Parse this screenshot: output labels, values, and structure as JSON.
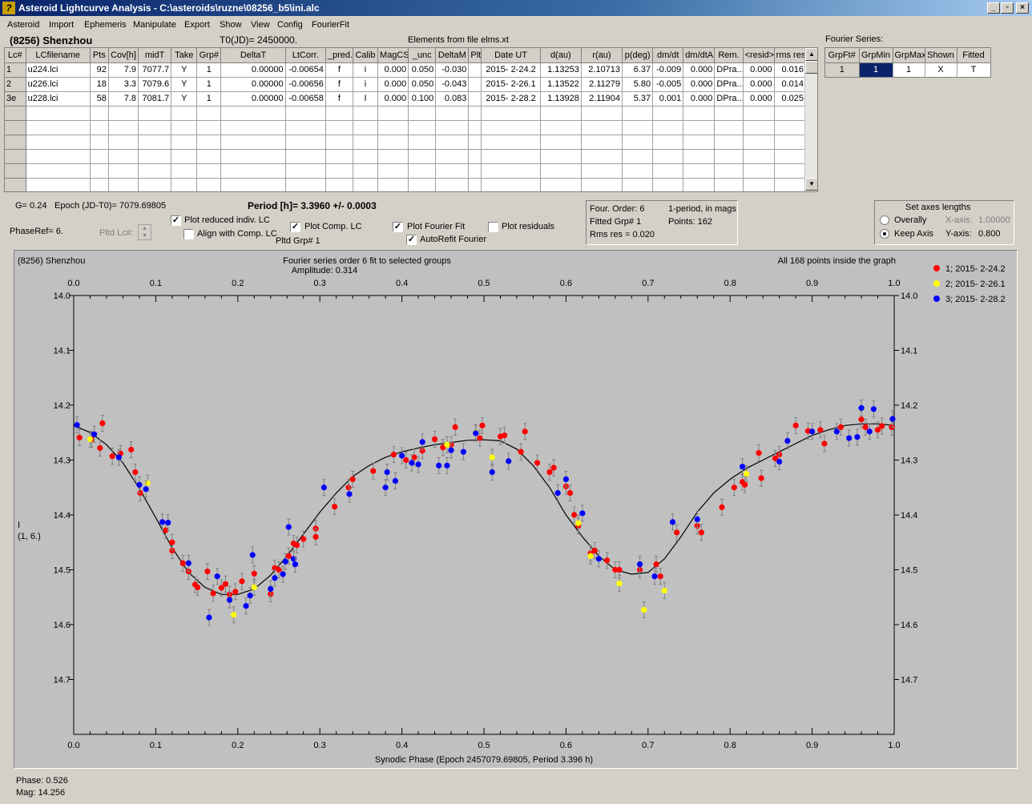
{
  "window": {
    "title": "Asteroid Lightcurve Analysis - C:\\asteroids\\ruzne\\08256_b5\\ini.alc",
    "buttons": [
      "_",
      "▫",
      "×"
    ]
  },
  "menu": [
    "Asteroid",
    "Import",
    "Ephemeris",
    "Manipulate",
    "Export",
    "Show",
    "View",
    "Config",
    "FourierFit"
  ],
  "header": {
    "object": "(8256) Shenzhou",
    "t0": "T0(JD)= 2450000.",
    "elements": "Elements from file elms.xt",
    "fourier_label": "Fourier Series:"
  },
  "lc_table": {
    "columns": [
      "Lc#",
      "LCfilename",
      "Pts",
      "Cov[h]",
      "midT",
      "Take",
      "Grp#",
      "DeltaT",
      "LtCorr.",
      "_pred.",
      "Calib",
      "MagCS",
      "_unc",
      "DeltaM",
      "Plt",
      "Date UT",
      "d(au)",
      "r(au)",
      "p(deg)",
      "dm/dt",
      "dm/dtA",
      "Rem.",
      "<resid>",
      "rms res"
    ],
    "rows": [
      [
        "1",
        "u224.lci",
        "92",
        "7.9",
        "7077.7",
        "Y",
        "1",
        "0.00000",
        "-0.00654",
        "f",
        "i",
        "0.000",
        "0.050",
        "-0.030",
        "",
        "2015- 2-24.2",
        "1.13253",
        "2.10713",
        "6.37",
        "-0.009",
        "0.000",
        "DPra...",
        "0.000",
        "0.016"
      ],
      [
        "2",
        "u226.lci",
        "18",
        "3.3",
        "7079.6",
        "Y",
        "1",
        "0.00000",
        "-0.00656",
        "f",
        "i",
        "0.000",
        "0.050",
        "-0.043",
        "",
        "2015- 2-26.1",
        "1.13522",
        "2.11279",
        "5.80",
        "-0.005",
        "0.000",
        "DPra...",
        "0.000",
        "0.014"
      ],
      [
        "3e",
        "u228.lci",
        "58",
        "7.8",
        "7081.7",
        "Y",
        "1",
        "0.00000",
        "-0.00658",
        "f",
        "I",
        "0.000",
        "0.100",
        "0.083",
        "",
        "2015- 2-28.2",
        "1.13928",
        "2.11904",
        "5.37",
        "0.001",
        "0.000",
        "DPra...",
        "0.000",
        "0.025"
      ]
    ]
  },
  "fourier_table": {
    "columns": [
      "GrpFt#",
      "GrpMin",
      "GrpMax",
      "Shown",
      "Fitted"
    ],
    "rows": [
      [
        "1",
        "1",
        "1",
        "X",
        "T"
      ]
    ]
  },
  "controls": {
    "g_text": "G= 0.24",
    "epoch_text": "Epoch (JD-T0)= 7079.69805",
    "period_text": "Period [h]= 3.3960 +/- 0.0003",
    "phaseref_text": "PhaseRef= 6.",
    "pltd_lc_label": "Pltd Lc#:",
    "plot_reduced_label": "Plot reduced indiv. LC",
    "align_label": "Align with Comp. LC",
    "plot_comp_label": "Plot Comp. LC",
    "pltd_grp_text": "Pltd Grp#  1",
    "plot_fourier_label": "Plot Fourier Fit",
    "autorefit_label": "AutoRefit Fourier",
    "plot_residuals_label": "Plot residuals",
    "checks": {
      "plot_reduced": true,
      "align": false,
      "plot_comp": true,
      "plot_fourier": true,
      "autorefit": true,
      "plot_residuals": false
    }
  },
  "fit_info": {
    "order": "Four. Order:  6",
    "mode": "1-period, in mags",
    "fitted": "Fitted Grp# 1",
    "points": "Points: 162",
    "rms": "Rms res     = 0.020"
  },
  "axes_box": {
    "title": "Set axes lengths",
    "overall": "Overally",
    "keep": "Keep Axis",
    "x_label": "X-axis:",
    "x_value": "1.00000",
    "y_label": "Y-axis:",
    "y_value": "0.800",
    "selected": "keep"
  },
  "chart_data": {
    "type": "scatter",
    "object_label": "(8256) Shenzhou",
    "title": "Fourier series order 6 fit to selected groups",
    "subtitle": "Amplitude: 0.314",
    "note": "All 168 points inside the graph",
    "xlabel": "Synodic Phase (Epoch 2457079.69805, Period 3.396 h)",
    "ylabel": "I",
    "ylabel2": "(1, 6.)",
    "xlim": [
      0.0,
      1.0
    ],
    "ylim": [
      14.0,
      14.8
    ],
    "y_inverted": true,
    "xticks": [
      "0.0",
      "0.1",
      "0.2",
      "0.3",
      "0.4",
      "0.5",
      "0.6",
      "0.7",
      "0.8",
      "0.9",
      "1.0"
    ],
    "yticks": [
      "14.0",
      "14.1",
      "14.2",
      "14.3",
      "14.4",
      "14.5",
      "14.6",
      "14.7"
    ],
    "series": [
      {
        "name": "1; 2015- 2-24.2",
        "color": "#ff0000",
        "points": [
          [
            0.007,
            14.259
          ],
          [
            0.022,
            14.262
          ],
          [
            0.032,
            14.278
          ],
          [
            0.035,
            14.233
          ],
          [
            0.047,
            14.293
          ],
          [
            0.057,
            14.288
          ],
          [
            0.07,
            14.281
          ],
          [
            0.075,
            14.322
          ],
          [
            0.081,
            14.36
          ],
          [
            0.112,
            14.428
          ],
          [
            0.12,
            14.465
          ],
          [
            0.12,
            14.45
          ],
          [
            0.133,
            14.488
          ],
          [
            0.14,
            14.503
          ],
          [
            0.148,
            14.527
          ],
          [
            0.151,
            14.532
          ],
          [
            0.163,
            14.503
          ],
          [
            0.17,
            14.543
          ],
          [
            0.18,
            14.533
          ],
          [
            0.185,
            14.526
          ],
          [
            0.19,
            14.545
          ],
          [
            0.197,
            14.54
          ],
          [
            0.205,
            14.521
          ],
          [
            0.22,
            14.507
          ],
          [
            0.24,
            14.544
          ],
          [
            0.245,
            14.497
          ],
          [
            0.25,
            14.5
          ],
          [
            0.262,
            14.475
          ],
          [
            0.268,
            14.452
          ],
          [
            0.272,
            14.455
          ],
          [
            0.28,
            14.444
          ],
          [
            0.295,
            14.425
          ],
          [
            0.295,
            14.44
          ],
          [
            0.318,
            14.385
          ],
          [
            0.335,
            14.35
          ],
          [
            0.34,
            14.335
          ],
          [
            0.365,
            14.32
          ],
          [
            0.39,
            14.29
          ],
          [
            0.405,
            14.3
          ],
          [
            0.415,
            14.295
          ],
          [
            0.425,
            14.283
          ],
          [
            0.44,
            14.262
          ],
          [
            0.45,
            14.277
          ],
          [
            0.46,
            14.272
          ],
          [
            0.465,
            14.24
          ],
          [
            0.495,
            14.26
          ],
          [
            0.498,
            14.237
          ],
          [
            0.52,
            14.257
          ],
          [
            0.525,
            14.255
          ],
          [
            0.545,
            14.285
          ],
          [
            0.55,
            14.248
          ],
          [
            0.565,
            14.305
          ],
          [
            0.58,
            14.322
          ],
          [
            0.585,
            14.314
          ],
          [
            0.6,
            14.348
          ],
          [
            0.605,
            14.36
          ],
          [
            0.61,
            14.4
          ],
          [
            0.615,
            14.42
          ],
          [
            0.63,
            14.47
          ],
          [
            0.635,
            14.465
          ],
          [
            0.65,
            14.483
          ],
          [
            0.66,
            14.5
          ],
          [
            0.665,
            14.5
          ],
          [
            0.69,
            14.5
          ],
          [
            0.71,
            14.49
          ],
          [
            0.715,
            14.512
          ],
          [
            0.735,
            14.432
          ],
          [
            0.76,
            14.42
          ],
          [
            0.765,
            14.432
          ],
          [
            0.79,
            14.386
          ],
          [
            0.805,
            14.35
          ],
          [
            0.815,
            14.34
          ],
          [
            0.818,
            14.345
          ],
          [
            0.835,
            14.287
          ],
          [
            0.838,
            14.333
          ],
          [
            0.855,
            14.297
          ],
          [
            0.86,
            14.29
          ],
          [
            0.88,
            14.237
          ],
          [
            0.895,
            14.247
          ],
          [
            0.91,
            14.245
          ],
          [
            0.915,
            14.27
          ],
          [
            0.935,
            14.24
          ],
          [
            0.96,
            14.226
          ],
          [
            0.965,
            14.24
          ],
          [
            0.98,
            14.245
          ],
          [
            0.985,
            14.238
          ],
          [
            0.997,
            14.24
          ]
        ]
      },
      {
        "name": "2; 2015- 2-26.1",
        "color": "#ffff00",
        "points": [
          [
            0.02,
            14.262
          ],
          [
            0.09,
            14.342
          ],
          [
            0.195,
            14.582
          ],
          [
            0.22,
            14.532
          ],
          [
            0.455,
            14.272
          ],
          [
            0.49,
            14.25
          ],
          [
            0.51,
            14.295
          ],
          [
            0.615,
            14.415
          ],
          [
            0.63,
            14.475
          ],
          [
            0.665,
            14.525
          ],
          [
            0.695,
            14.573
          ],
          [
            0.72,
            14.538
          ],
          [
            0.82,
            14.325
          ]
        ]
      },
      {
        "name": "3; 2015- 2-28.2",
        "color": "#0000ff",
        "points": [
          [
            0.004,
            14.236
          ],
          [
            0.025,
            14.253
          ],
          [
            0.055,
            14.295
          ],
          [
            0.08,
            14.345
          ],
          [
            0.088,
            14.353
          ],
          [
            0.108,
            14.413
          ],
          [
            0.115,
            14.414
          ],
          [
            0.14,
            14.488
          ],
          [
            0.165,
            14.587
          ],
          [
            0.175,
            14.512
          ],
          [
            0.19,
            14.555
          ],
          [
            0.21,
            14.566
          ],
          [
            0.215,
            14.547
          ],
          [
            0.218,
            14.473
          ],
          [
            0.24,
            14.535
          ],
          [
            0.245,
            14.515
          ],
          [
            0.255,
            14.508
          ],
          [
            0.258,
            14.485
          ],
          [
            0.262,
            14.422
          ],
          [
            0.268,
            14.48
          ],
          [
            0.27,
            14.49
          ],
          [
            0.305,
            14.35
          ],
          [
            0.336,
            14.362
          ],
          [
            0.38,
            14.35
          ],
          [
            0.382,
            14.322
          ],
          [
            0.392,
            14.338
          ],
          [
            0.412,
            14.305
          ],
          [
            0.4,
            14.292
          ],
          [
            0.42,
            14.308
          ],
          [
            0.425,
            14.267
          ],
          [
            0.445,
            14.31
          ],
          [
            0.455,
            14.31
          ],
          [
            0.46,
            14.282
          ],
          [
            0.475,
            14.285
          ],
          [
            0.49,
            14.251
          ],
          [
            0.51,
            14.322
          ],
          [
            0.53,
            14.302
          ],
          [
            0.59,
            14.36
          ],
          [
            0.6,
            14.335
          ],
          [
            0.62,
            14.397
          ],
          [
            0.64,
            14.48
          ],
          [
            0.69,
            14.49
          ],
          [
            0.708,
            14.512
          ],
          [
            0.73,
            14.413
          ],
          [
            0.76,
            14.408
          ],
          [
            0.815,
            14.312
          ],
          [
            0.86,
            14.303
          ],
          [
            0.87,
            14.265
          ],
          [
            0.9,
            14.248
          ],
          [
            0.93,
            14.248
          ],
          [
            0.945,
            14.26
          ],
          [
            0.955,
            14.258
          ],
          [
            0.96,
            14.205
          ],
          [
            0.97,
            14.248
          ],
          [
            0.975,
            14.207
          ],
          [
            0.998,
            14.225
          ]
        ]
      }
    ],
    "fit": {
      "x": [
        0.0,
        0.02,
        0.04,
        0.06,
        0.08,
        0.1,
        0.12,
        0.14,
        0.16,
        0.18,
        0.2,
        0.22,
        0.24,
        0.26,
        0.28,
        0.3,
        0.32,
        0.34,
        0.36,
        0.38,
        0.4,
        0.42,
        0.44,
        0.46,
        0.48,
        0.5,
        0.52,
        0.54,
        0.56,
        0.58,
        0.6,
        0.62,
        0.64,
        0.66,
        0.68,
        0.7,
        0.72,
        0.74,
        0.76,
        0.78,
        0.8,
        0.82,
        0.84,
        0.86,
        0.88,
        0.9,
        0.92,
        0.94,
        0.96,
        0.98,
        1.0
      ],
      "y": [
        14.237,
        14.25,
        14.272,
        14.305,
        14.352,
        14.405,
        14.46,
        14.505,
        14.532,
        14.545,
        14.545,
        14.535,
        14.51,
        14.475,
        14.435,
        14.395,
        14.36,
        14.33,
        14.31,
        14.295,
        14.285,
        14.278,
        14.272,
        14.268,
        14.264,
        14.263,
        14.265,
        14.28,
        14.31,
        14.35,
        14.4,
        14.44,
        14.475,
        14.5,
        14.508,
        14.505,
        14.48,
        14.44,
        14.395,
        14.36,
        14.335,
        14.315,
        14.3,
        14.285,
        14.27,
        14.255,
        14.245,
        14.237,
        14.234,
        14.234,
        14.237
      ]
    }
  },
  "status": {
    "phase": "Phase:  0.526",
    "mag": "Mag:    14.256"
  }
}
